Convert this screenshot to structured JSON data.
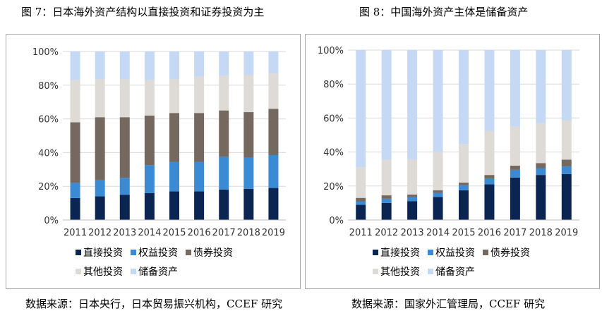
{
  "figure_left": {
    "title": "图 7：日本海外资产结构以直接投资和证券投资为主",
    "source": "数据来源：日本央行，日本贸易振兴机构，CCEF 研究"
  },
  "figure_right": {
    "title": "图 8：中国海外资产主体是储备资产",
    "source": "数据来源：国家外汇管理局，CCEF 研究"
  },
  "chart_data": [
    {
      "type": "bar",
      "stacked": true,
      "categories": [
        "2011",
        "2012",
        "2013",
        "2014",
        "2015",
        "2016",
        "2017",
        "2018",
        "2019"
      ],
      "y_ticks": [
        "0%",
        "20%",
        "40%",
        "60%",
        "80%",
        "100%"
      ],
      "ylim": [
        0,
        100
      ],
      "grid": true,
      "legend_position": "bottom",
      "series": [
        {
          "name": "直接投资",
          "color": "#0b2553",
          "values": [
            13,
            14,
            15,
            16,
            17,
            17,
            18,
            18.5,
            19
          ]
        },
        {
          "name": "权益投资",
          "color": "#3a8ad4",
          "values": [
            9,
            9.5,
            10,
            16.5,
            17.5,
            17.5,
            19.5,
            18.5,
            19.5
          ]
        },
        {
          "name": "债券投资",
          "color": "#75695f",
          "values": [
            36,
            37.5,
            36,
            29.5,
            29,
            29,
            27.5,
            27,
            27.5
          ]
        },
        {
          "name": "其他投资",
          "color": "#dedbd7",
          "values": [
            25,
            22.5,
            22.5,
            21,
            20,
            21.5,
            20.5,
            22,
            21
          ]
        },
        {
          "name": "储备资产",
          "color": "#c5d9f5",
          "values": [
            17,
            16.5,
            16.5,
            17,
            16.5,
            15,
            14.5,
            14,
            13
          ]
        }
      ]
    },
    {
      "type": "bar",
      "stacked": true,
      "categories": [
        "2011",
        "2012",
        "2013",
        "2014",
        "2015",
        "2016",
        "2017",
        "2018",
        "2019"
      ],
      "y_ticks": [
        "0%",
        "20%",
        "40%",
        "60%",
        "80%",
        "100%"
      ],
      "ylim": [
        0,
        100
      ],
      "grid": true,
      "legend_position": "bottom",
      "series": [
        {
          "name": "直接投资",
          "color": "#0b2553",
          "values": [
            9,
            10,
            11,
            13.5,
            17.5,
            21,
            25,
            26.5,
            27
          ]
        },
        {
          "name": "权益投资",
          "color": "#3a8ad4",
          "values": [
            2,
            2.5,
            2.5,
            2.5,
            3,
            3.5,
            4.5,
            4,
            4.5
          ]
        },
        {
          "name": "债券投资",
          "color": "#75695f",
          "values": [
            2,
            2,
            1.5,
            1.5,
            1.5,
            2,
            2.5,
            3,
            4
          ]
        },
        {
          "name": "其他投资",
          "color": "#dedbd7",
          "values": [
            18,
            21,
            20.5,
            22.5,
            22.5,
            26,
            23,
            23.5,
            23
          ]
        },
        {
          "name": "储备资产",
          "color": "#c5d9f5",
          "values": [
            69,
            64.5,
            64.5,
            60,
            55.5,
            47.5,
            45,
            43,
            41.5
          ]
        }
      ]
    }
  ]
}
